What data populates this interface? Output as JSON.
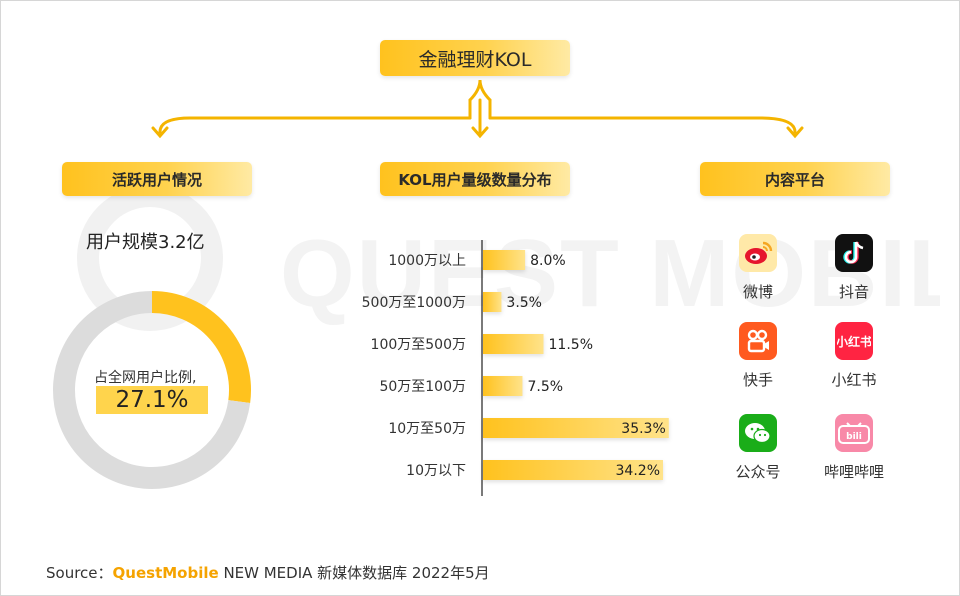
{
  "title": "金融理财KOL",
  "sections": {
    "active": "活跃用户情况",
    "distribution": "KOL用户量级数量分布",
    "platforms": "内容平台"
  },
  "watermark": "QUEST MOBILE",
  "user_scale": "用户规模3.2亿",
  "share_label": "占全网用户比例,",
  "share_value": "27.1%",
  "platforms": [
    {
      "name": "微博",
      "icon": "weibo-icon",
      "color": "#f5a623"
    },
    {
      "name": "抖音",
      "icon": "douyin-icon",
      "color": "#111111"
    },
    {
      "name": "快手",
      "icon": "kuaishou-icon",
      "color": "#ff5a1f"
    },
    {
      "name": "小红书",
      "icon": "xiaohongshu-icon",
      "color": "#ff2442"
    },
    {
      "name": "公众号",
      "icon": "wechat-icon",
      "color": "#1aad19"
    },
    {
      "name": "哔哩哔哩",
      "icon": "bilibili-icon",
      "color": "#f889a8"
    }
  ],
  "footer": {
    "prefix": "Source：",
    "brand": "QuestMobile",
    "rest": " NEW MEDIA 新媒体数据库   2022年5月"
  },
  "chart_data": [
    {
      "type": "bar",
      "orientation": "horizontal",
      "categories": [
        "1000万以上",
        "500万至1000万",
        "100万至500万",
        "50万至100万",
        "10万至50万",
        "10万以下"
      ],
      "values": [
        8.0,
        3.5,
        11.5,
        7.5,
        35.3,
        34.2
      ],
      "labels": [
        "8.0%",
        "3.5%",
        "11.5%",
        "7.5%",
        "35.3%",
        "34.2%"
      ],
      "xlim": [
        0,
        38
      ],
      "colors": [
        "#ffc21e",
        "#ffe38a"
      ]
    },
    {
      "type": "pie",
      "variant": "donut",
      "values": [
        27.1,
        72.9
      ],
      "colors": [
        "#ffc21e",
        "#dcdcdc"
      ]
    }
  ]
}
